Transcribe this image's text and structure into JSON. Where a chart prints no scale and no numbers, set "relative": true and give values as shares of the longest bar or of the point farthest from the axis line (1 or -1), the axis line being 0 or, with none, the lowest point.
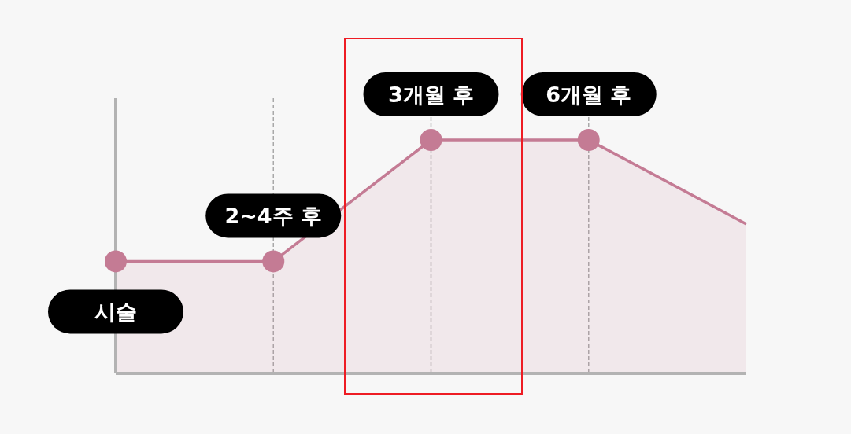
{
  "chart_data": {
    "type": "area",
    "categories": [
      null,
      null,
      null,
      null,
      null
    ],
    "series": [
      {
        "color": "#c47b94",
        "values": [
          0.48,
          0.48,
          1,
          1,
          0.64
        ]
      }
    ],
    "relative": true,
    "grid": "x",
    "marker": "circle",
    "line_style": "solid",
    "annotations": [
      "시술",
      "2~4주 후",
      "3개월 후",
      "6개월 후"
    ]
  }
}
